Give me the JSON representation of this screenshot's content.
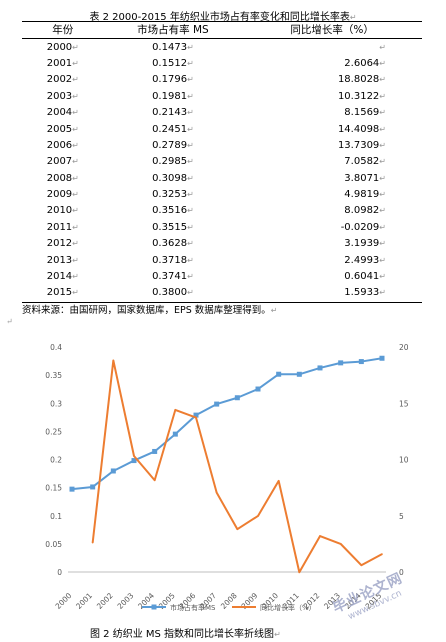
{
  "table": {
    "title": "表 2  2000-2015 年纺织业市场占有率变化和同比增长率表",
    "headers": [
      "年份",
      "市场占有率 MS",
      "同比增长率（%）"
    ],
    "rows": [
      {
        "year": "2000",
        "ms": "0.1473",
        "growth": ""
      },
      {
        "year": "2001",
        "ms": "0.1512",
        "growth": "2.6064"
      },
      {
        "year": "2002",
        "ms": "0.1796",
        "growth": "18.8028"
      },
      {
        "year": "2003",
        "ms": "0.1981",
        "growth": "10.3122"
      },
      {
        "year": "2004",
        "ms": "0.2143",
        "growth": "8.1569"
      },
      {
        "year": "2005",
        "ms": "0.2451",
        "growth": "14.4098"
      },
      {
        "year": "2006",
        "ms": "0.2789",
        "growth": "13.7309"
      },
      {
        "year": "2007",
        "ms": "0.2985",
        "growth": "7.0582"
      },
      {
        "year": "2008",
        "ms": "0.3098",
        "growth": "3.8071"
      },
      {
        "year": "2009",
        "ms": "0.3253",
        "growth": "4.9819"
      },
      {
        "year": "2010",
        "ms": "0.3516",
        "growth": "8.0982"
      },
      {
        "year": "2011",
        "ms": "0.3515",
        "growth": "-0.0209"
      },
      {
        "year": "2012",
        "ms": "0.3628",
        "growth": "3.1939"
      },
      {
        "year": "2013",
        "ms": "0.3718",
        "growth": "2.4993"
      },
      {
        "year": "2014",
        "ms": "0.3741",
        "growth": "0.6041"
      },
      {
        "year": "2015",
        "ms": "0.3800",
        "growth": "1.5933"
      }
    ]
  },
  "source_note": "资料来源：由国研网，国家数据库，EPS 数据库整理得到。",
  "paragraph_mark": "↵",
  "figure_caption": "图 2  纺织业 MS 指数和同比增长率折线图",
  "watermark": {
    "main": "毕业论文网",
    "sub": "www.sbvv.cn"
  },
  "chart_data": {
    "type": "line",
    "categories": [
      "2000",
      "2001",
      "2002",
      "2003",
      "2004",
      "2005",
      "2006",
      "2007",
      "2008",
      "2009",
      "2010",
      "2011",
      "2012",
      "2013",
      "2014",
      "2015"
    ],
    "series": [
      {
        "name": "市场占有率MS",
        "axis": "left",
        "color": "#5b9bd5",
        "marker": "square",
        "values": [
          0.1473,
          0.1512,
          0.1796,
          0.1981,
          0.2143,
          0.2451,
          0.2789,
          0.2985,
          0.3098,
          0.3253,
          0.3516,
          0.3515,
          0.3628,
          0.3718,
          0.3741,
          0.38
        ]
      },
      {
        "name": "同比增长率（%）",
        "axis": "right",
        "color": "#ed7d31",
        "marker": "none",
        "values": [
          null,
          2.6064,
          18.8028,
          10.3122,
          8.1569,
          14.4098,
          13.7309,
          7.0582,
          3.8071,
          4.9819,
          8.0982,
          -0.0209,
          3.1939,
          2.4993,
          0.6041,
          1.5933
        ]
      }
    ],
    "y_left": {
      "ticks": [
        "0",
        "0.05",
        "0.1",
        "0.15",
        "0.2",
        "0.25",
        "0.3",
        "0.35",
        "0.4"
      ],
      "range": [
        0,
        0.4
      ]
    },
    "y_right": {
      "ticks": [
        "0",
        "5",
        "10",
        "15",
        "20"
      ],
      "range": [
        0,
        20
      ]
    },
    "grid": false,
    "legend_position": "bottom"
  }
}
